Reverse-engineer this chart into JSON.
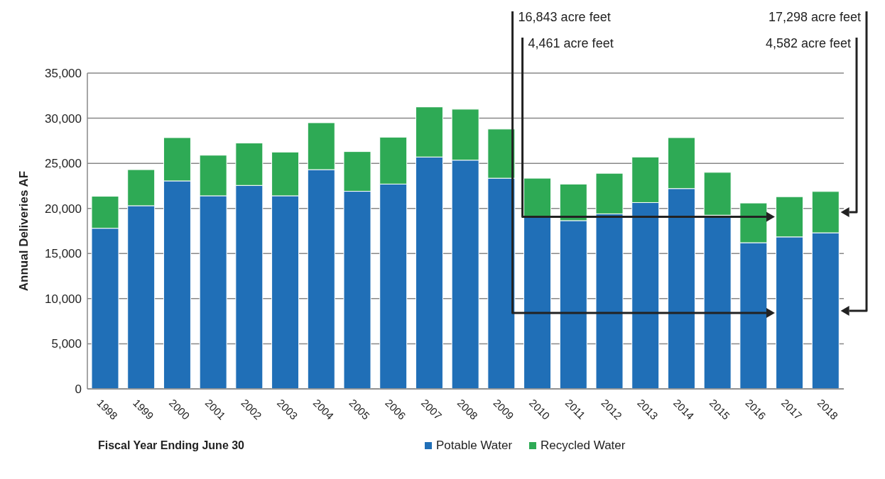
{
  "chart_data": {
    "type": "bar",
    "stacked": true,
    "xlabel": "Fiscal Year Ending June 30",
    "ylabel": "Annual Deliveries  AF",
    "categories": [
      "1998",
      "1999",
      "2000",
      "2001",
      "2002",
      "2003",
      "2004",
      "2005",
      "2006",
      "2007",
      "2008",
      "2009",
      "2010",
      "2011",
      "2012",
      "2013",
      "2014",
      "2015",
      "2016",
      "2017",
      "2018"
    ],
    "series": [
      {
        "name": "Potable Water",
        "color": "#206fb7",
        "values": [
          17800,
          20300,
          23050,
          21400,
          22550,
          21400,
          24300,
          21900,
          22700,
          25700,
          25350,
          23350,
          19000,
          18650,
          19400,
          20650,
          22200,
          19250,
          16200,
          16843,
          17298
        ]
      },
      {
        "name": "Recycled Water",
        "color": "#2eaa55",
        "values": [
          3550,
          4000,
          4800,
          4500,
          4700,
          4850,
          5200,
          4400,
          5200,
          5550,
          5650,
          5450,
          4350,
          4050,
          4500,
          5050,
          5650,
          4750,
          4400,
          4461,
          4582
        ]
      }
    ],
    "ylim": [
      0,
      35000
    ],
    "yticks": [
      0,
      {
        "value": 5000,
        "label": "5,000"
      },
      {
        "value": 10000,
        "label": "10,000"
      },
      {
        "value": 15000,
        "label": "15,000"
      },
      {
        "value": 20000,
        "label": "20,000"
      },
      {
        "value": 25000,
        "label": "25,000"
      },
      {
        "value": 30000,
        "label": "30,000"
      },
      {
        "value": 35000,
        "label": "35,000"
      }
    ],
    "grid": "y",
    "legend": "bottom",
    "annotations": [
      "16,843 acre feet",
      "4,461 acre feet",
      "17,298 acre feet",
      "4,582 acre feet"
    ]
  }
}
